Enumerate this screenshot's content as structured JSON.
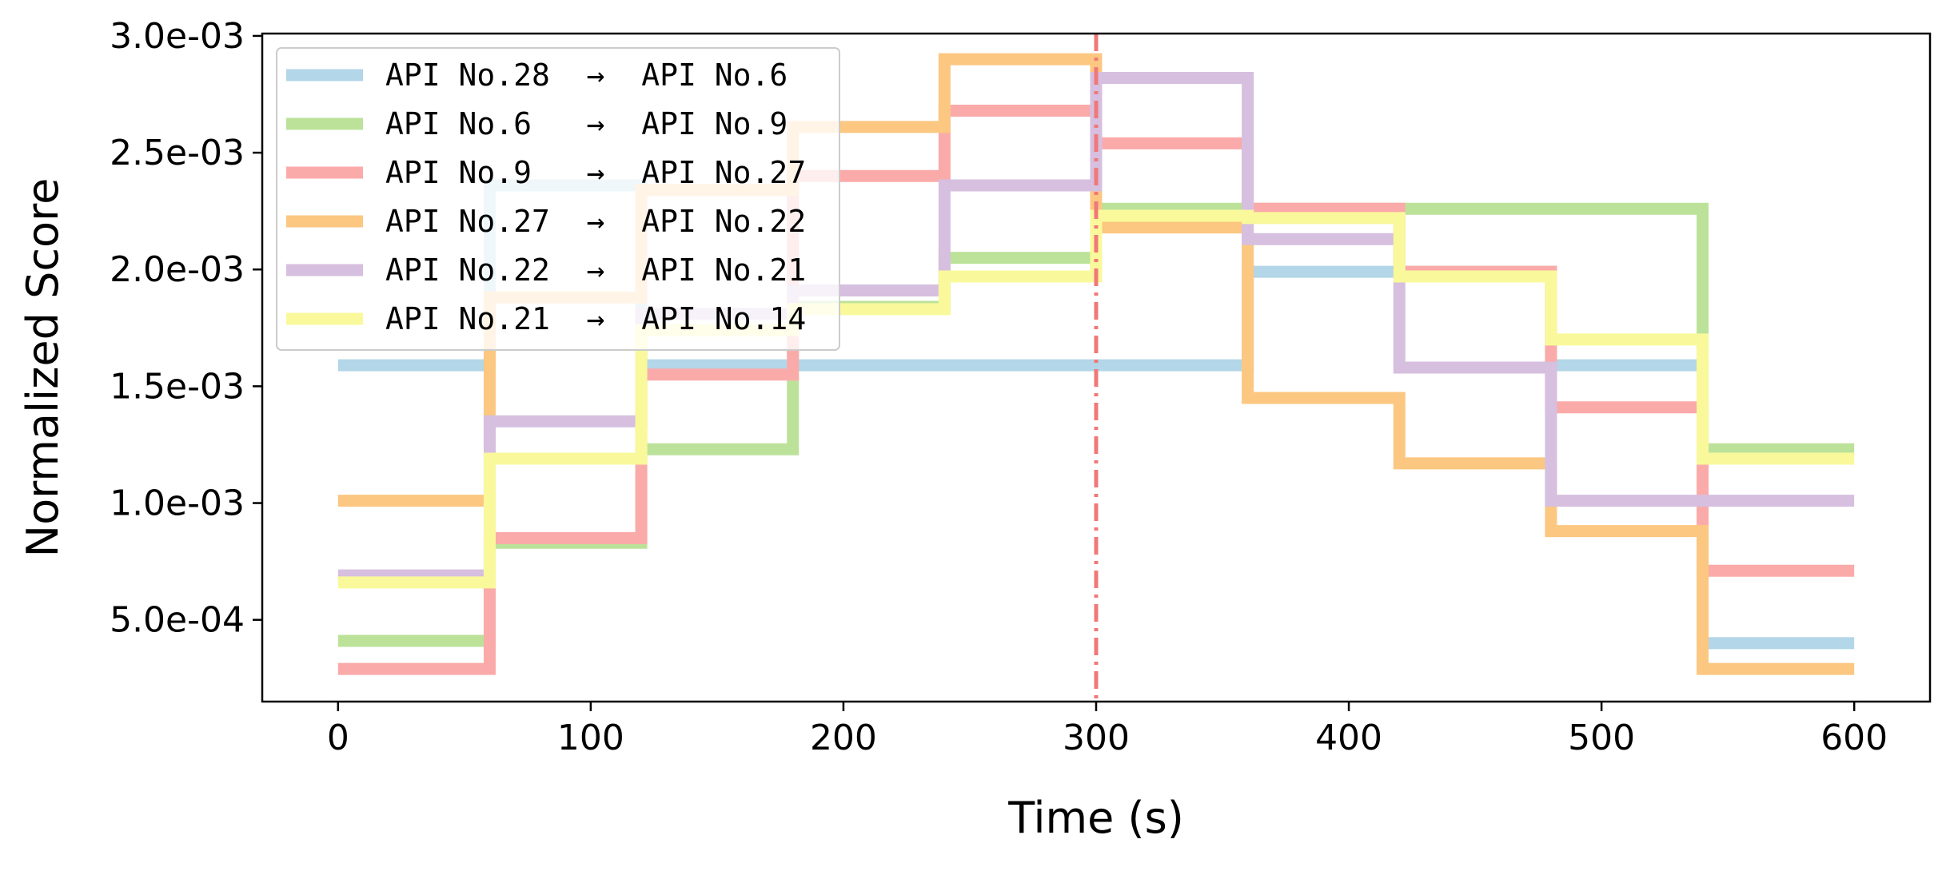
{
  "chart_data": {
    "type": "line",
    "step": "post",
    "title": "",
    "xlabel": "Time (s)",
    "ylabel": "Normalized Score",
    "xlim": [
      -30,
      630
    ],
    "ylim": [
      0.00015,
      0.00301
    ],
    "xticks": [
      0,
      100,
      200,
      300,
      400,
      500,
      600
    ],
    "xtick_labels": [
      "0",
      "100",
      "200",
      "300",
      "400",
      "500",
      "600"
    ],
    "yticks": [
      0.0005,
      0.001,
      0.0015,
      0.002,
      0.0025,
      0.003
    ],
    "ytick_labels": [
      "5.0e-04",
      "1.0e-03",
      "1.5e-03",
      "2.0e-03",
      "2.5e-03",
      "3.0e-03"
    ],
    "vline": {
      "x": 300,
      "color": "#f07878",
      "style": "dashdot"
    },
    "legend_position": "upper left",
    "x": [
      0,
      60,
      120,
      180,
      240,
      300,
      360,
      420,
      480,
      540,
      600
    ],
    "series": [
      {
        "name": "API No.28  →  API No.6",
        "color": "#b3d6e8",
        "values": [
          0.00159,
          0.00236,
          0.00159,
          0.00159,
          0.00159,
          0.00159,
          0.00199,
          0.00199,
          0.00159,
          0.0004,
          0.0004
        ]
      },
      {
        "name": "API No.6   →  API No.9",
        "color": "#bce29a",
        "values": [
          0.00041,
          0.00083,
          0.00123,
          0.00184,
          0.00205,
          0.00226,
          0.00226,
          0.00226,
          0.00226,
          0.00123,
          0.00123
        ]
      },
      {
        "name": "API No.9   →  API No.27",
        "color": "#fbaaaa",
        "values": [
          0.00029,
          0.00085,
          0.00155,
          0.0024,
          0.00268,
          0.00254,
          0.00226,
          0.00199,
          0.00141,
          0.00071,
          0.00071
        ]
      },
      {
        "name": "API No.27  →  API No.22",
        "color": "#fcc781",
        "values": [
          0.00101,
          0.00188,
          0.00234,
          0.00261,
          0.0029,
          0.00218,
          0.00145,
          0.00117,
          0.00088,
          0.00029,
          0.00029
        ]
      },
      {
        "name": "API No.22  →  API No.21",
        "color": "#d6bfdf",
        "values": [
          0.00069,
          0.00135,
          0.00181,
          0.00191,
          0.00236,
          0.00282,
          0.00213,
          0.00158,
          0.00101,
          0.00101,
          0.00101
        ]
      },
      {
        "name": "API No.21  →  API No.14",
        "color": "#f9f99b",
        "values": [
          0.00066,
          0.00119,
          0.00174,
          0.00183,
          0.00197,
          0.00223,
          0.00222,
          0.00197,
          0.0017,
          0.00119,
          0.00119
        ]
      }
    ]
  }
}
